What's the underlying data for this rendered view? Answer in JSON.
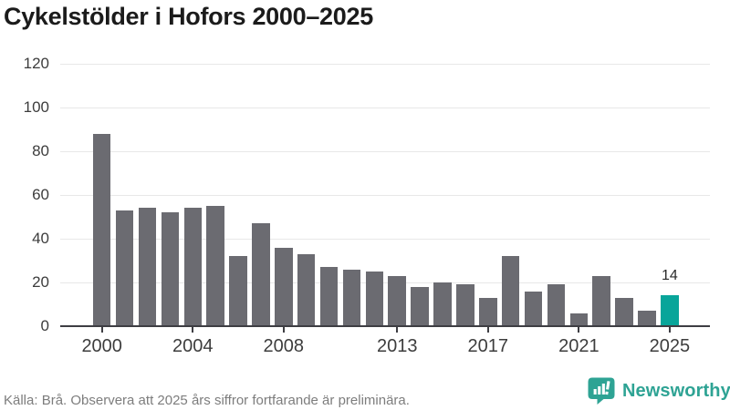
{
  "title": "Cykelstölder i Hofors 2000–2025",
  "chart_data": {
    "type": "bar",
    "title": "Cykelstölder i Hofors 2000–2025",
    "categories": [
      2000,
      2001,
      2002,
      2003,
      2004,
      2005,
      2006,
      2007,
      2008,
      2009,
      2010,
      2011,
      2012,
      2013,
      2014,
      2015,
      2016,
      2017,
      2018,
      2019,
      2020,
      2021,
      2022,
      2023,
      2024,
      2025
    ],
    "values": [
      88,
      53,
      54,
      52,
      54,
      55,
      32,
      47,
      36,
      33,
      27,
      26,
      25,
      23,
      18,
      20,
      19,
      13,
      32,
      16,
      19,
      6,
      23,
      13,
      7,
      14
    ],
    "ylim": [
      0,
      120
    ],
    "yticks": [
      0,
      20,
      40,
      60,
      80,
      100,
      120
    ],
    "xtick_years": [
      2000,
      2004,
      2008,
      2013,
      2017,
      2021,
      2025
    ],
    "grid": true,
    "legend_position": "none",
    "bar_color": "#6b6b71",
    "highlight_color": "#08a59a",
    "highlight_year": 2025,
    "annotation": {
      "year": 2025,
      "text": "14"
    }
  },
  "footer": {
    "source_text": "Källa: Brå. Observera att 2025 års siffror fortfarande är preliminära."
  },
  "branding": {
    "logo_text": "Newsworthy",
    "brand_color": "#2ea394"
  }
}
